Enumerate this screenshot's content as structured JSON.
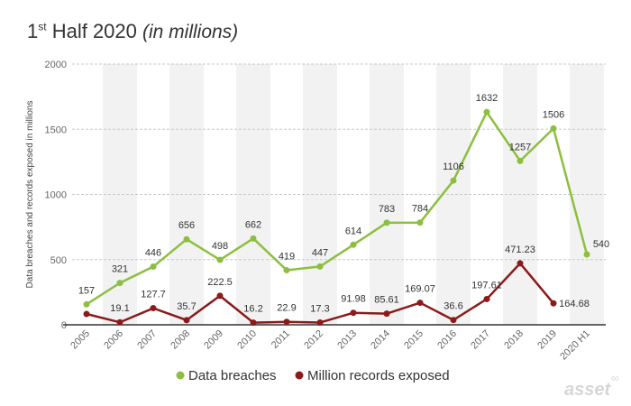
{
  "title": {
    "main_pre": "1",
    "sup": "st",
    "main_post": " Half 2020 ",
    "italic": "(in millions)"
  },
  "logo": {
    "text": "asset",
    "mark": "∞"
  },
  "chart_data": {
    "type": "line",
    "ylabel": "Data breaches and records exposed in millions",
    "xlabel": "",
    "ylim": [
      0,
      2000
    ],
    "yticks": [
      0,
      500,
      1000,
      1500,
      2000
    ],
    "grid": true,
    "legend_position": "bottom",
    "categories": [
      "2005",
      "2006",
      "2007",
      "2008",
      "2009",
      "2010",
      "2011",
      "2012",
      "2013",
      "2014",
      "2015",
      "2016",
      "2017",
      "2018",
      "2019",
      "2020 H1"
    ],
    "series": [
      {
        "name": "Data breaches",
        "color": "#8cbf3f",
        "values": [
          157,
          321,
          446,
          656,
          498,
          662,
          419,
          447,
          614,
          783,
          784,
          1106,
          1632,
          1257,
          1506,
          540
        ],
        "labels": [
          "157",
          "321",
          "446",
          "656",
          "498",
          "662",
          "419",
          "447",
          "614",
          "783",
          "784",
          "1106",
          "1632",
          "1257",
          "1506",
          "540"
        ]
      },
      {
        "name": "Million records exposed",
        "color": "#8b1a1a",
        "values": [
          83,
          19.1,
          127.7,
          35.7,
          222.5,
          16.2,
          22.9,
          17.3,
          91.98,
          85.61,
          169.07,
          36.6,
          197.61,
          471.23,
          164.68,
          null
        ],
        "labels": [
          null,
          "19.1",
          "127.7",
          "35.7",
          "222.5",
          "16.2",
          "22.9",
          "17.3",
          "91.98",
          "85.61",
          "169.07",
          "36.6",
          "197.61",
          "471.23",
          "164.68",
          null
        ]
      }
    ]
  }
}
